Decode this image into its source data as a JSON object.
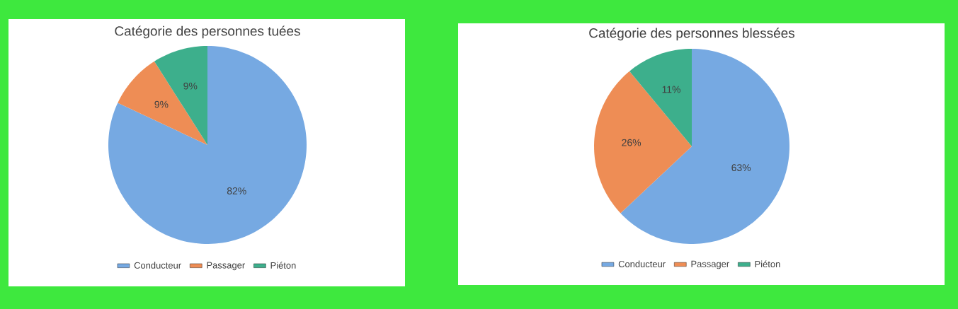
{
  "chart_data": [
    {
      "type": "pie",
      "title": "Catégorie des personnes tuées",
      "categories": [
        "Conducteur",
        "Passager",
        "Piéton"
      ],
      "values": [
        82,
        9,
        9
      ],
      "value_labels": [
        "82%",
        "9%",
        "9%"
      ],
      "colors": [
        "#76a9e2",
        "#ee8d55",
        "#3daf8c"
      ],
      "legend": "bottom"
    },
    {
      "type": "pie",
      "title": "Catégorie des personnes blessées",
      "categories": [
        "Conducteur",
        "Passager",
        "Piéton"
      ],
      "values": [
        63,
        26,
        11
      ],
      "value_labels": [
        "63%",
        "26%",
        "11%"
      ],
      "colors": [
        "#76a9e2",
        "#ee8d55",
        "#3daf8c"
      ],
      "legend": "bottom"
    }
  ]
}
